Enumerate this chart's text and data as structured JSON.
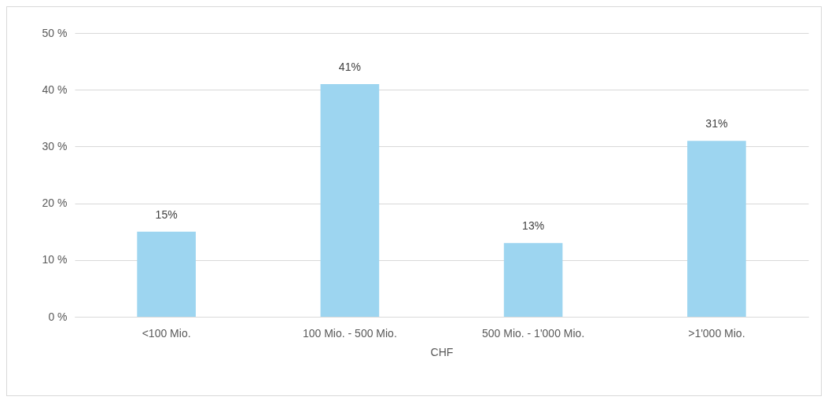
{
  "chart_data": {
    "type": "bar",
    "xlabel": "CHF",
    "categories": [
      "<100 Mio.",
      "100 Mio. - 500 Mio.",
      "500 Mio. - 1'000 Mio.",
      ">1'000 Mio."
    ],
    "values": [
      15,
      41,
      13,
      31
    ],
    "value_labels": [
      "15%",
      "41%",
      "13%",
      "31%"
    ],
    "color": "#9dd5f0",
    "ylim": [
      0,
      50
    ],
    "yticks": [
      {
        "value": 0,
        "label": "0 %"
      },
      {
        "value": 10,
        "label": "10 %"
      },
      {
        "value": 20,
        "label": "20 %"
      },
      {
        "value": 30,
        "label": "30 %"
      },
      {
        "value": 40,
        "label": "40 %"
      },
      {
        "value": 50,
        "label": "50 %"
      }
    ],
    "grid": "y"
  }
}
